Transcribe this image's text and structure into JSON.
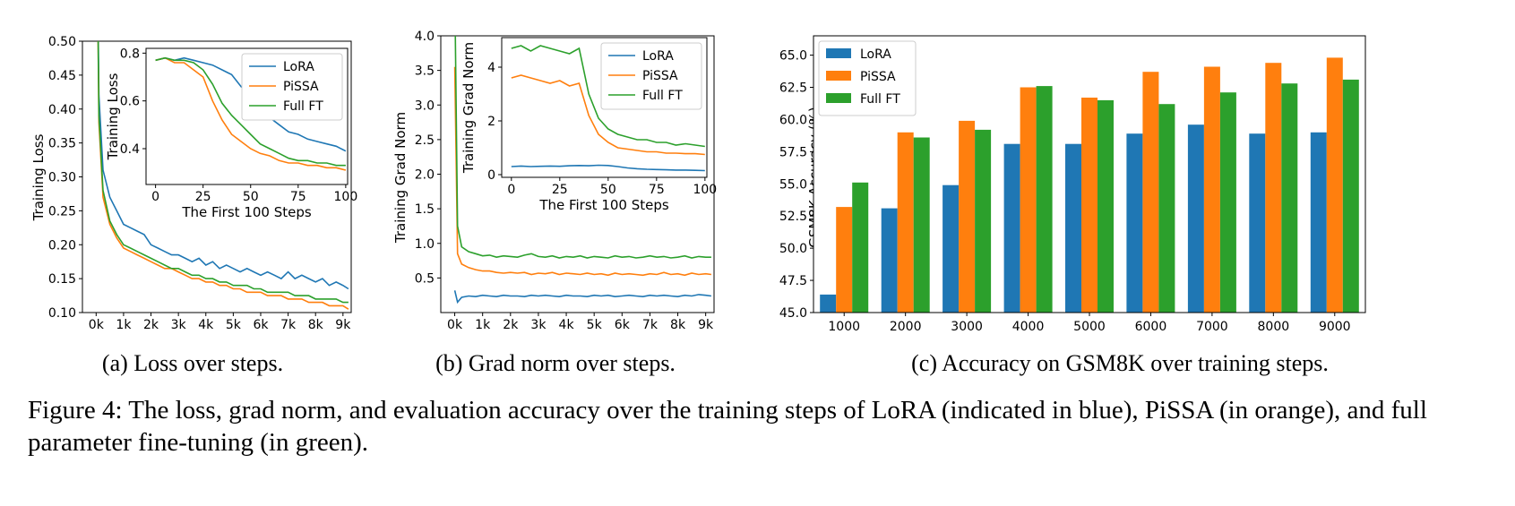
{
  "colors": {
    "lora": "#1f77b4",
    "pissa": "#ff7f0e",
    "fullft": "#2ca02c"
  },
  "series_names": [
    "LoRA",
    "PiSSA",
    "Full FT"
  ],
  "caption": "Figure 4: The loss, grad norm, and evaluation accuracy over the training steps of LoRA (indicated in blue), PiSSA (in orange), and full parameter fine-tuning (in green).",
  "subcaptions": [
    "(a) Loss over steps.",
    "(b) Grad norm over steps.",
    "(c) Accuracy on GSM8K over training steps."
  ],
  "chart_data": [
    {
      "type": "line",
      "ylabel": "Training Loss",
      "xlabel": "",
      "ylim": [
        0.1,
        0.5
      ],
      "xlim": [
        -500,
        9300
      ],
      "xticks": [
        0,
        1000,
        2000,
        3000,
        4000,
        5000,
        6000,
        7000,
        8000,
        9000
      ],
      "xtick_labels": [
        "0k",
        "1k",
        "2k",
        "3k",
        "4k",
        "5k",
        "6k",
        "7k",
        "8k",
        "9k"
      ],
      "yticks": [
        0.1,
        0.15,
        0.2,
        0.25,
        0.3,
        0.35,
        0.4,
        0.45,
        0.5
      ],
      "ytick_labels": [
        "0.10",
        "0.15",
        "0.20",
        "0.25",
        "0.30",
        "0.35",
        "0.40",
        "0.45",
        "0.50"
      ],
      "x": [
        0,
        100,
        250,
        500,
        750,
        1000,
        1250,
        1500,
        1750,
        2000,
        2250,
        2500,
        2750,
        3000,
        3250,
        3500,
        3750,
        4000,
        4250,
        4500,
        4750,
        5000,
        5250,
        5500,
        5750,
        6000,
        6250,
        6500,
        6750,
        7000,
        7250,
        7500,
        7750,
        8000,
        8250,
        8500,
        8750,
        9000,
        9200
      ],
      "series": [
        {
          "name": "LoRA",
          "values": [
            0.8,
            0.42,
            0.31,
            0.27,
            0.25,
            0.23,
            0.225,
            0.22,
            0.215,
            0.2,
            0.195,
            0.19,
            0.185,
            0.185,
            0.18,
            0.175,
            0.18,
            0.17,
            0.175,
            0.165,
            0.17,
            0.165,
            0.16,
            0.165,
            0.16,
            0.155,
            0.16,
            0.155,
            0.15,
            0.16,
            0.15,
            0.155,
            0.15,
            0.145,
            0.15,
            0.14,
            0.145,
            0.14,
            0.135
          ]
        },
        {
          "name": "PiSSA",
          "values": [
            0.8,
            0.38,
            0.27,
            0.23,
            0.21,
            0.195,
            0.19,
            0.185,
            0.18,
            0.175,
            0.17,
            0.165,
            0.165,
            0.16,
            0.155,
            0.15,
            0.15,
            0.145,
            0.145,
            0.14,
            0.14,
            0.135,
            0.135,
            0.13,
            0.13,
            0.13,
            0.125,
            0.125,
            0.125,
            0.12,
            0.12,
            0.12,
            0.115,
            0.115,
            0.115,
            0.11,
            0.11,
            0.11,
            0.105
          ]
        },
        {
          "name": "Full FT",
          "values": [
            0.8,
            0.39,
            0.28,
            0.235,
            0.215,
            0.2,
            0.195,
            0.19,
            0.185,
            0.18,
            0.175,
            0.17,
            0.165,
            0.165,
            0.16,
            0.155,
            0.155,
            0.15,
            0.15,
            0.145,
            0.145,
            0.14,
            0.14,
            0.14,
            0.135,
            0.135,
            0.13,
            0.13,
            0.13,
            0.13,
            0.125,
            0.125,
            0.125,
            0.12,
            0.12,
            0.12,
            0.12,
            0.115,
            0.115
          ]
        }
      ],
      "inset": {
        "xlabel": "The First 100 Steps",
        "ylabel": "Training Loss",
        "xlim": [
          -5,
          101
        ],
        "ylim": [
          0.25,
          0.82
        ],
        "xticks": [
          0,
          25,
          50,
          75,
          100
        ],
        "xtick_labels": [
          "0",
          "25",
          "50",
          "75",
          "100"
        ],
        "yticks": [
          0.4,
          0.6,
          0.8
        ],
        "ytick_labels": [
          "0.4",
          "0.6",
          "0.8"
        ],
        "x": [
          0,
          5,
          10,
          15,
          20,
          25,
          30,
          35,
          40,
          45,
          50,
          55,
          60,
          65,
          70,
          75,
          80,
          85,
          90,
          95,
          100
        ],
        "series": [
          {
            "name": "LoRA",
            "values": [
              0.77,
              0.78,
              0.77,
              0.78,
              0.77,
              0.76,
              0.75,
              0.73,
              0.71,
              0.66,
              0.62,
              0.57,
              0.53,
              0.5,
              0.47,
              0.46,
              0.44,
              0.43,
              0.42,
              0.41,
              0.39
            ]
          },
          {
            "name": "PiSSA",
            "values": [
              0.77,
              0.78,
              0.76,
              0.76,
              0.73,
              0.7,
              0.6,
              0.52,
              0.46,
              0.43,
              0.4,
              0.38,
              0.37,
              0.35,
              0.34,
              0.34,
              0.33,
              0.33,
              0.32,
              0.32,
              0.31
            ]
          },
          {
            "name": "Full FT",
            "values": [
              0.77,
              0.78,
              0.77,
              0.77,
              0.76,
              0.73,
              0.67,
              0.59,
              0.54,
              0.5,
              0.46,
              0.42,
              0.4,
              0.38,
              0.36,
              0.35,
              0.35,
              0.34,
              0.34,
              0.33,
              0.33
            ]
          }
        ]
      }
    },
    {
      "type": "line",
      "ylabel": "Training Grad Norm",
      "xlabel": "",
      "ylim": [
        0.0,
        4.0
      ],
      "xlim": [
        -500,
        9300
      ],
      "xticks": [
        0,
        1000,
        2000,
        3000,
        4000,
        5000,
        6000,
        7000,
        8000,
        9000
      ],
      "xtick_labels": [
        "0k",
        "1k",
        "2k",
        "3k",
        "4k",
        "5k",
        "6k",
        "7k",
        "8k",
        "9k"
      ],
      "yticks": [
        0.5,
        1.0,
        1.5,
        2.0,
        2.5,
        3.0,
        3.5,
        4.0
      ],
      "ytick_labels": [
        "0.5",
        "1.0",
        "1.5",
        "2.0",
        "2.5",
        "3.0",
        "3.5",
        "4.0"
      ],
      "x": [
        0,
        100,
        250,
        500,
        750,
        1000,
        1250,
        1500,
        1750,
        2000,
        2250,
        2500,
        2750,
        3000,
        3250,
        3500,
        3750,
        4000,
        4250,
        4500,
        4750,
        5000,
        5250,
        5500,
        5750,
        6000,
        6250,
        6500,
        6750,
        7000,
        7250,
        7500,
        7750,
        8000,
        8250,
        8500,
        8750,
        9000,
        9200
      ],
      "series": [
        {
          "name": "LoRA",
          "values": [
            0.32,
            0.15,
            0.22,
            0.24,
            0.23,
            0.25,
            0.24,
            0.23,
            0.25,
            0.24,
            0.24,
            0.23,
            0.25,
            0.24,
            0.25,
            0.24,
            0.23,
            0.25,
            0.24,
            0.24,
            0.23,
            0.25,
            0.24,
            0.25,
            0.23,
            0.24,
            0.25,
            0.24,
            0.23,
            0.25,
            0.24,
            0.25,
            0.24,
            0.23,
            0.25,
            0.24,
            0.26,
            0.25,
            0.24
          ]
        },
        {
          "name": "PiSSA",
          "values": [
            3.55,
            0.85,
            0.7,
            0.65,
            0.62,
            0.6,
            0.6,
            0.58,
            0.57,
            0.58,
            0.57,
            0.58,
            0.55,
            0.57,
            0.56,
            0.58,
            0.55,
            0.57,
            0.56,
            0.55,
            0.57,
            0.55,
            0.56,
            0.54,
            0.57,
            0.55,
            0.56,
            0.55,
            0.54,
            0.56,
            0.55,
            0.58,
            0.55,
            0.56,
            0.54,
            0.57,
            0.55,
            0.56,
            0.55
          ]
        },
        {
          "name": "Full FT",
          "values": [
            4.7,
            1.25,
            0.95,
            0.88,
            0.85,
            0.82,
            0.83,
            0.8,
            0.82,
            0.81,
            0.8,
            0.83,
            0.85,
            0.81,
            0.8,
            0.82,
            0.79,
            0.81,
            0.8,
            0.82,
            0.79,
            0.81,
            0.8,
            0.79,
            0.82,
            0.8,
            0.81,
            0.79,
            0.8,
            0.82,
            0.8,
            0.81,
            0.79,
            0.8,
            0.82,
            0.79,
            0.81,
            0.8,
            0.8
          ]
        }
      ],
      "inset": {
        "xlabel": "The First 100 Steps",
        "ylabel": "Training Grad Norm",
        "xlim": [
          -5,
          101
        ],
        "ylim": [
          -0.1,
          5.1
        ],
        "xticks": [
          0,
          25,
          50,
          75,
          100
        ],
        "xtick_labels": [
          "0",
          "25",
          "50",
          "75",
          "100"
        ],
        "yticks": [
          0,
          2,
          4
        ],
        "ytick_labels": [
          "0",
          "2",
          "4"
        ],
        "x": [
          0,
          5,
          10,
          15,
          20,
          25,
          30,
          35,
          40,
          45,
          50,
          55,
          60,
          65,
          70,
          75,
          80,
          85,
          90,
          95,
          100
        ],
        "series": [
          {
            "name": "LoRA",
            "values": [
              0.3,
              0.32,
              0.3,
              0.31,
              0.32,
              0.31,
              0.33,
              0.34,
              0.33,
              0.35,
              0.34,
              0.3,
              0.25,
              0.22,
              0.2,
              0.19,
              0.18,
              0.17,
              0.17,
              0.16,
              0.15
            ]
          },
          {
            "name": "PiSSA",
            "values": [
              3.6,
              3.7,
              3.6,
              3.5,
              3.4,
              3.5,
              3.3,
              3.4,
              2.2,
              1.5,
              1.2,
              1.0,
              0.95,
              0.9,
              0.85,
              0.85,
              0.8,
              0.8,
              0.78,
              0.78,
              0.75
            ]
          },
          {
            "name": "Full FT",
            "values": [
              4.7,
              4.8,
              4.6,
              4.8,
              4.7,
              4.6,
              4.5,
              4.7,
              3.0,
              2.1,
              1.7,
              1.5,
              1.4,
              1.3,
              1.3,
              1.2,
              1.2,
              1.1,
              1.15,
              1.1,
              1.05
            ]
          }
        ]
      }
    },
    {
      "type": "bar",
      "ylabel": "GSM8K Accuracy (%)",
      "xlabel": "",
      "ylim": [
        45.0,
        66.5
      ],
      "categories": [
        "1000",
        "2000",
        "3000",
        "4000",
        "5000",
        "6000",
        "7000",
        "8000",
        "9000"
      ],
      "yticks": [
        45.0,
        47.5,
        50.0,
        52.5,
        55.0,
        57.5,
        60.0,
        62.5,
        65.0
      ],
      "ytick_labels": [
        "45.0",
        "47.5",
        "50.0",
        "52.5",
        "55.0",
        "57.5",
        "60.0",
        "62.5",
        "65.0"
      ],
      "legend": "top-left",
      "series": [
        {
          "name": "LoRA",
          "values": [
            46.4,
            53.1,
            54.9,
            58.1,
            58.1,
            58.9,
            59.6,
            58.9,
            59.0
          ]
        },
        {
          "name": "PiSSA",
          "values": [
            53.2,
            59.0,
            59.9,
            62.5,
            61.7,
            63.7,
            64.1,
            64.4,
            64.8
          ]
        },
        {
          "name": "Full FT",
          "values": [
            55.1,
            58.6,
            59.2,
            62.6,
            61.5,
            61.2,
            62.1,
            62.8,
            63.1
          ]
        }
      ]
    }
  ]
}
